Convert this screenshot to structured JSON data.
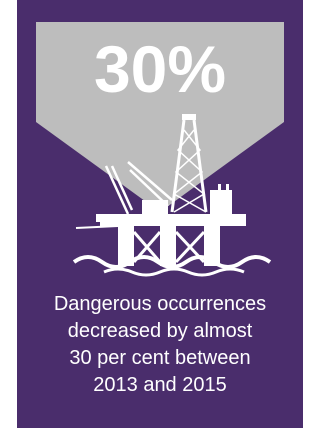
{
  "headline": "30%",
  "description": [
    "Dangerous occurrences",
    "decreased by almost",
    "30 per cent between",
    "2013 and 2015"
  ]
}
